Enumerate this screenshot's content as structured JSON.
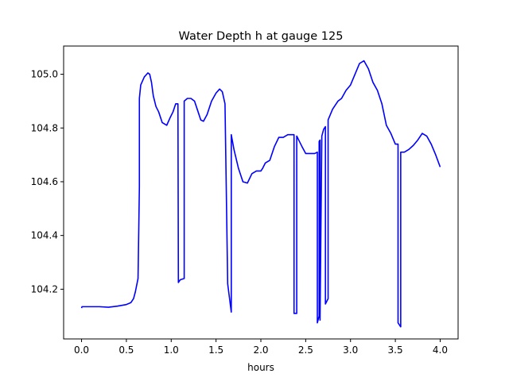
{
  "chart_data": {
    "type": "line",
    "title": "Water Depth h at gauge 125",
    "xlabel": "hours",
    "ylabel": "",
    "xlim": [
      -0.2,
      4.2
    ],
    "ylim": [
      104.015,
      105.105
    ],
    "xticks": [
      0.0,
      0.5,
      1.0,
      1.5,
      2.0,
      2.5,
      3.0,
      3.5,
      4.0
    ],
    "xtick_labels": [
      "0.0",
      "0.5",
      "1.0",
      "1.5",
      "2.0",
      "2.5",
      "3.0",
      "3.5",
      "4.0"
    ],
    "yticks": [
      104.2,
      104.4,
      104.6,
      104.8,
      105.0
    ],
    "ytick_labels": [
      "104.2",
      "104.4",
      "104.6",
      "104.8",
      "105.0"
    ],
    "grid": false,
    "series": [
      {
        "color": "#0000ff",
        "x": [
          0.0,
          0.005,
          0.1,
          0.2,
          0.3,
          0.4,
          0.5,
          0.55,
          0.58,
          0.6,
          0.63,
          0.645,
          0.645,
          0.66,
          0.7,
          0.74,
          0.76,
          0.78,
          0.8,
          0.83,
          0.86,
          0.9,
          0.95,
          0.99,
          1.02,
          1.05,
          1.075,
          1.08,
          1.08,
          1.1,
          1.145,
          1.145,
          1.18,
          1.22,
          1.26,
          1.3,
          1.33,
          1.36,
          1.4,
          1.45,
          1.5,
          1.54,
          1.57,
          1.6,
          1.63,
          1.63,
          1.67,
          1.67,
          1.7,
          1.75,
          1.8,
          1.85,
          1.9,
          1.95,
          2.0,
          2.02,
          2.05,
          2.1,
          2.15,
          2.2,
          2.25,
          2.3,
          2.35,
          2.37,
          2.37,
          2.4,
          2.4,
          2.43,
          2.46,
          2.5,
          2.55,
          2.6,
          2.63,
          2.63,
          2.65,
          2.65,
          2.66,
          2.66,
          2.68,
          2.7,
          2.72,
          2.72,
          2.75,
          2.75,
          2.8,
          2.86,
          2.9,
          2.95,
          3.0,
          3.05,
          3.1,
          3.15,
          3.2,
          3.25,
          3.3,
          3.35,
          3.4,
          3.45,
          3.5,
          3.53,
          3.53,
          3.56,
          3.56,
          3.6,
          3.65,
          3.7,
          3.75,
          3.8,
          3.85,
          3.9,
          3.95,
          4.0
        ],
        "y": [
          104.13,
          104.135,
          104.135,
          104.135,
          104.133,
          104.137,
          104.143,
          104.15,
          104.165,
          104.19,
          104.24,
          104.58,
          104.91,
          104.96,
          104.99,
          105.005,
          105.0,
          104.97,
          104.92,
          104.88,
          104.86,
          104.82,
          104.81,
          104.84,
          104.86,
          104.89,
          104.89,
          104.225,
          104.225,
          104.235,
          104.24,
          104.9,
          104.91,
          104.91,
          104.9,
          104.86,
          104.83,
          104.825,
          104.85,
          104.9,
          104.93,
          104.945,
          104.935,
          104.89,
          104.22,
          104.22,
          104.115,
          104.775,
          104.72,
          104.65,
          104.6,
          104.595,
          104.63,
          104.64,
          104.64,
          104.65,
          104.67,
          104.68,
          104.73,
          104.765,
          104.765,
          104.775,
          104.775,
          104.775,
          104.11,
          104.11,
          104.77,
          104.75,
          104.73,
          104.705,
          104.705,
          104.705,
          104.71,
          104.075,
          104.1,
          104.75,
          104.755,
          104.085,
          104.77,
          104.795,
          104.805,
          104.145,
          104.165,
          104.83,
          104.87,
          104.9,
          104.91,
          104.94,
          104.96,
          105.0,
          105.04,
          105.05,
          105.02,
          104.97,
          104.94,
          104.89,
          104.81,
          104.78,
          104.74,
          104.74,
          104.075,
          104.06,
          104.71,
          104.71,
          104.72,
          104.735,
          104.755,
          104.78,
          104.77,
          104.74,
          104.7,
          104.655
        ]
      }
    ]
  }
}
